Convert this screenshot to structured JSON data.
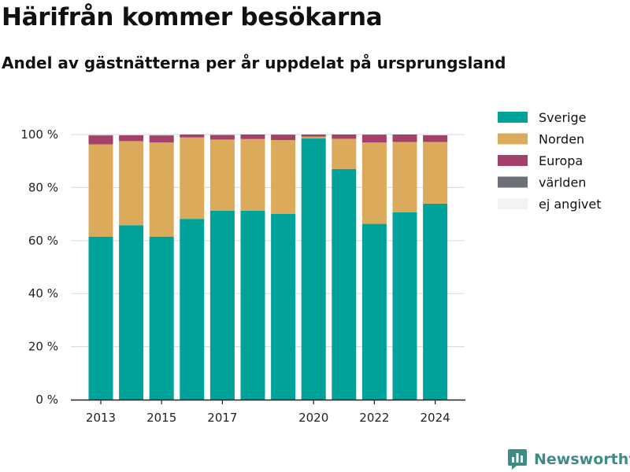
{
  "header": {
    "title": "Härifrån kommer besökarna",
    "subtitle": "Andel av gästnätterna per år uppdelat på ursprungsland"
  },
  "brand": {
    "name": "Newsworthy",
    "color": "#3f8c86"
  },
  "chart_data": {
    "type": "bar",
    "stacked": true,
    "title": "Härifrån kommer besökarna",
    "subtitle": "Andel av gästnätterna per år uppdelat på ursprungsland",
    "xlabel": "",
    "ylabel": "",
    "categories": [
      2013,
      2014,
      2015,
      2016,
      2017,
      2018,
      2019,
      2020,
      2021,
      2022,
      2023,
      2024
    ],
    "x_tick_labels": [
      "2013",
      "2015",
      "2017",
      "2020",
      "2022",
      "2024"
    ],
    "y_ticks": [
      0,
      20,
      40,
      60,
      80,
      100
    ],
    "y_tick_labels": [
      "0 %",
      "20 %",
      "40 %",
      "60 %",
      "80 %",
      "100 %"
    ],
    "ylim": [
      0,
      100
    ],
    "grid": "horizontal",
    "legend_position": "right",
    "series": [
      {
        "name": "Sverige",
        "color": "#00a39a",
        "values": [
          61.5,
          65.8,
          61.5,
          68.2,
          71.3,
          71.3,
          70.1,
          98.5,
          87.0,
          66.3,
          70.7,
          73.9
        ]
      },
      {
        "name": "Norden",
        "color": "#dbab5b",
        "values": [
          34.8,
          31.7,
          35.5,
          30.7,
          26.8,
          27.0,
          27.8,
          0.7,
          11.4,
          30.7,
          26.5,
          23.3
        ]
      },
      {
        "name": "Europa",
        "color": "#a4416a",
        "values": [
          3.3,
          2.2,
          2.6,
          1.1,
          1.6,
          1.7,
          2.0,
          0.8,
          1.6,
          2.9,
          2.8,
          2.5
        ]
      },
      {
        "name": "världen",
        "color": "#6e7078",
        "values": [
          0.2,
          0.1,
          0.2,
          0.0,
          0.2,
          0.0,
          0.1,
          0.0,
          0.0,
          0.1,
          0.0,
          0.1
        ]
      },
      {
        "name": "ej angivet",
        "color": "#f3f3f3",
        "values": [
          0.2,
          0.2,
          0.2,
          0.0,
          0.1,
          0.0,
          0.0,
          0.0,
          0.0,
          0.0,
          0.0,
          0.2
        ]
      }
    ]
  }
}
